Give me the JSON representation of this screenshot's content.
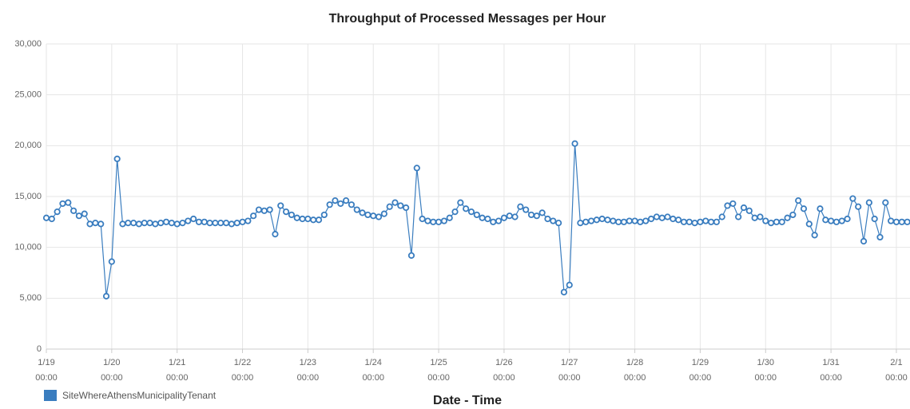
{
  "chart_data": {
    "type": "line",
    "title": "Throughput of Processed Messages per Hour",
    "x_label": "Date - Time",
    "x": [
      "1/19 00:00",
      "1/19 02:00",
      "1/19 04:00",
      "1/19 06:00",
      "1/19 08:00",
      "1/19 10:00",
      "1/19 12:00",
      "1/19 14:00",
      "1/19 16:00",
      "1/19 18:00",
      "1/19 20:00",
      "1/19 22:00",
      "1/20 00:00",
      "1/20 02:00",
      "1/20 04:00",
      "1/20 06:00",
      "1/20 08:00",
      "1/20 10:00",
      "1/20 12:00",
      "1/20 14:00",
      "1/20 16:00",
      "1/20 18:00",
      "1/20 20:00",
      "1/20 22:00",
      "1/21 00:00",
      "1/21 02:00",
      "1/21 04:00",
      "1/21 06:00",
      "1/21 08:00",
      "1/21 10:00",
      "1/21 12:00",
      "1/21 14:00",
      "1/21 16:00",
      "1/21 18:00",
      "1/21 20:00",
      "1/21 22:00",
      "1/22 00:00",
      "1/22 02:00",
      "1/22 04:00",
      "1/22 06:00",
      "1/22 08:00",
      "1/22 10:00",
      "1/22 12:00",
      "1/22 14:00",
      "1/22 16:00",
      "1/22 18:00",
      "1/22 20:00",
      "1/22 22:00",
      "1/23 00:00",
      "1/23 02:00",
      "1/23 04:00",
      "1/23 06:00",
      "1/23 08:00",
      "1/23 10:00",
      "1/23 12:00",
      "1/23 14:00",
      "1/23 16:00",
      "1/23 18:00",
      "1/23 20:00",
      "1/23 22:00",
      "1/24 00:00",
      "1/24 02:00",
      "1/24 04:00",
      "1/24 06:00",
      "1/24 08:00",
      "1/24 10:00",
      "1/24 12:00",
      "1/24 14:00",
      "1/24 16:00",
      "1/24 18:00",
      "1/24 20:00",
      "1/24 22:00",
      "1/25 00:00",
      "1/25 02:00",
      "1/25 04:00",
      "1/25 06:00",
      "1/25 08:00",
      "1/25 10:00",
      "1/25 12:00",
      "1/25 14:00",
      "1/25 16:00",
      "1/25 18:00",
      "1/25 20:00",
      "1/25 22:00",
      "1/26 00:00",
      "1/26 02:00",
      "1/26 04:00",
      "1/26 06:00",
      "1/26 08:00",
      "1/26 10:00",
      "1/26 12:00",
      "1/26 14:00",
      "1/26 16:00",
      "1/26 18:00",
      "1/26 20:00",
      "1/26 22:00",
      "1/27 00:00",
      "1/27 02:00",
      "1/27 04:00",
      "1/27 06:00",
      "1/27 08:00",
      "1/27 10:00",
      "1/27 12:00",
      "1/27 14:00",
      "1/27 16:00",
      "1/27 18:00",
      "1/27 20:00",
      "1/27 22:00",
      "1/28 00:00",
      "1/28 02:00",
      "1/28 04:00",
      "1/28 06:00",
      "1/28 08:00",
      "1/28 10:00",
      "1/28 12:00",
      "1/28 14:00",
      "1/28 16:00",
      "1/28 18:00",
      "1/28 20:00",
      "1/28 22:00",
      "1/29 00:00",
      "1/29 02:00",
      "1/29 04:00",
      "1/29 06:00",
      "1/29 08:00",
      "1/29 10:00",
      "1/29 12:00",
      "1/29 14:00",
      "1/29 16:00",
      "1/29 18:00",
      "1/29 20:00",
      "1/29 22:00",
      "1/30 00:00",
      "1/30 02:00",
      "1/30 04:00",
      "1/30 06:00",
      "1/30 08:00",
      "1/30 10:00",
      "1/30 12:00",
      "1/30 14:00",
      "1/30 16:00",
      "1/30 18:00",
      "1/30 20:00",
      "1/30 22:00",
      "1/31 00:00",
      "1/31 02:00",
      "1/31 04:00",
      "1/31 06:00",
      "1/31 08:00",
      "1/31 10:00",
      "1/31 12:00",
      "1/31 14:00",
      "1/31 16:00",
      "1/31 18:00",
      "1/31 20:00",
      "1/31 22:00",
      "2/1 00:00",
      "2/1 02:00",
      "2/1 04:00"
    ],
    "series": [
      {
        "name": "SiteWhereAthensMunicipalityTenant",
        "color": "#3a7dbf",
        "values": [
          12900,
          12800,
          13500,
          14300,
          14400,
          13600,
          13100,
          13300,
          12300,
          12400,
          12300,
          5200,
          8600,
          18700,
          12300,
          12400,
          12400,
          12300,
          12400,
          12400,
          12300,
          12400,
          12500,
          12400,
          12300,
          12400,
          12600,
          12800,
          12500,
          12500,
          12400,
          12400,
          12400,
          12400,
          12300,
          12400,
          12500,
          12600,
          13100,
          13700,
          13600,
          13700,
          11300,
          14100,
          13500,
          13200,
          12900,
          12800,
          12800,
          12700,
          12700,
          13200,
          14200,
          14600,
          14300,
          14600,
          14200,
          13700,
          13400,
          13200,
          13100,
          13000,
          13300,
          14000,
          14400,
          14100,
          13900,
          9200,
          17800,
          12800,
          12600,
          12500,
          12500,
          12600,
          12900,
          13500,
          14400,
          13800,
          13500,
          13200,
          12900,
          12800,
          12500,
          12600,
          12900,
          13100,
          13000,
          14000,
          13700,
          13200,
          13100,
          13400,
          12800,
          12600,
          12400,
          5600,
          6300,
          20200,
          12400,
          12500,
          12600,
          12700,
          12800,
          12700,
          12600,
          12500,
          12500,
          12600,
          12600,
          12500,
          12600,
          12800,
          13000,
          12900,
          13000,
          12800,
          12700,
          12500,
          12500,
          12400,
          12500,
          12600,
          12500,
          12500,
          13000,
          14100,
          14300,
          13000,
          13900,
          13600,
          12900,
          13000,
          12600,
          12400,
          12500,
          12500,
          12900,
          13200,
          14600,
          13800,
          12300,
          11200,
          13800,
          12700,
          12600,
          12500,
          12600,
          12800,
          14800,
          14000,
          10600,
          14400,
          12800,
          11000,
          14400,
          12600,
          12500,
          12500,
          12500
        ]
      }
    ],
    "xlim": [
      "1/19 00:00",
      "2/1 05:00"
    ],
    "xticks": [
      {
        "value": "1/19 00:00",
        "label": "1/19\n00:00"
      },
      {
        "value": "1/20 00:00",
        "label": "1/20\n00:00"
      },
      {
        "value": "1/21 00:00",
        "label": "1/21\n00:00"
      },
      {
        "value": "1/22 00:00",
        "label": "1/22\n00:00"
      },
      {
        "value": "1/23 00:00",
        "label": "1/23\n00:00"
      },
      {
        "value": "1/24 00:00",
        "label": "1/24\n00:00"
      },
      {
        "value": "1/25 00:00",
        "label": "1/25\n00:00"
      },
      {
        "value": "1/26 00:00",
        "label": "1/26\n00:00"
      },
      {
        "value": "1/27 00:00",
        "label": "1/27\n00:00"
      },
      {
        "value": "1/28 00:00",
        "label": "1/28\n00:00"
      },
      {
        "value": "1/29 00:00",
        "label": "1/29\n00:00"
      },
      {
        "value": "1/30 00:00",
        "label": "1/30\n00:00"
      },
      {
        "value": "1/31 00:00",
        "label": "1/31\n00:00"
      },
      {
        "value": "2/1 00:00",
        "label": "2/1\n00:00"
      }
    ],
    "ylim": [
      0,
      30000
    ],
    "yticks": [
      0,
      {
        "value": 5000,
        "label": "5,000"
      },
      {
        "value": 10000,
        "label": "10,000"
      },
      {
        "value": 15000,
        "label": "15,000"
      },
      {
        "value": 20000,
        "label": "20,000"
      },
      {
        "value": 25000,
        "label": "25,000"
      },
      {
        "value": 30000,
        "label": "30,000"
      }
    ],
    "grid": true
  }
}
